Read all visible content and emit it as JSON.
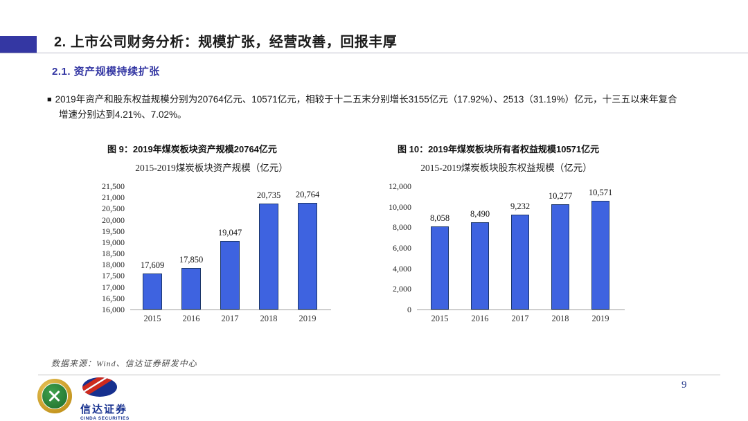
{
  "slide": {
    "title": "2.  上市公司财务分析：规模扩张，经营改善，回报丰厚",
    "section_heading": "2.1.  资产规模持续扩张",
    "bullet_marker": "■",
    "bullet_text": "2019年资产和股东权益规模分别为20764亿元、10571亿元，相较于十二五末分别增长3155亿元（17.92%）、2513（31.19%）亿元，十三五以来年复合增速分别达到4.21%、7.02%。",
    "source_note": "数据来源：Wind、信达证券研发中心",
    "page_number": "9"
  },
  "figures": [
    {
      "caption": "图 9：2019年煤炭板块资产规模20764亿元"
    },
    {
      "caption": "图 10：2019年煤炭板块所有者权益规模10571亿元"
    }
  ],
  "footer": {
    "cinda_logo_text": "信达证券",
    "cinda_logo_subtext": "CINDA SECURITIES"
  },
  "colors": {
    "accent_indigo": "#3437A3",
    "bar_fill": "#3E63E0",
    "bar_border": "#1B3668",
    "cinda_blue": "#16308F",
    "cinda_red": "#CE2A1D",
    "logo_gold": "#C99A2C",
    "logo_green": "#2A7A33",
    "page_number_blue": "#273B8C"
  },
  "chart_data": [
    {
      "type": "bar",
      "title": "2015-2019煤炭板块资产规模（亿元）",
      "categories": [
        "2015",
        "2016",
        "2017",
        "2018",
        "2019"
      ],
      "values": [
        17609,
        17850,
        19047,
        20735,
        20764
      ],
      "value_labels": [
        "17,609",
        "17,850",
        "19,047",
        "20,735",
        "20,764"
      ],
      "xlabel": "",
      "ylabel": "",
      "ylim": [
        16000,
        21500
      ],
      "ytick_step": 500,
      "ytick_labels": [
        "16,000",
        "16,500",
        "17,000",
        "17,500",
        "18,000",
        "18,500",
        "19,000",
        "19,500",
        "20,000",
        "20,500",
        "21,000",
        "21,500"
      ],
      "grid": false,
      "legend": "none"
    },
    {
      "type": "bar",
      "title": "2015-2019煤炭板块股东权益规模（亿元）",
      "categories": [
        "2015",
        "2016",
        "2017",
        "2018",
        "2019"
      ],
      "values": [
        8058,
        8490,
        9232,
        10277,
        10571
      ],
      "value_labels": [
        "8,058",
        "8,490",
        "9,232",
        "10,277",
        "10,571"
      ],
      "xlabel": "",
      "ylabel": "",
      "ylim": [
        0,
        12000
      ],
      "ytick_step": 2000,
      "ytick_labels": [
        "0",
        "2,000",
        "4,000",
        "6,000",
        "8,000",
        "10,000",
        "12,000"
      ],
      "grid": false,
      "legend": "none"
    }
  ]
}
